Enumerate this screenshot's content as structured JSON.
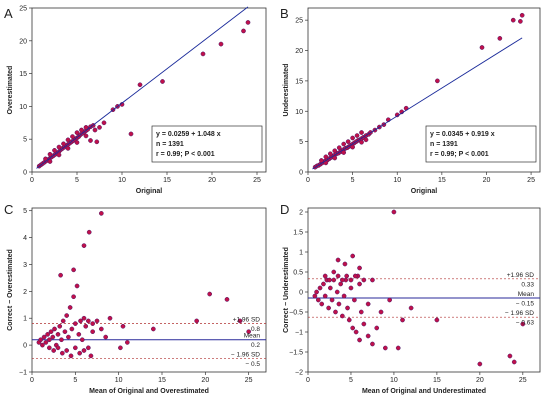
{
  "chart_data": [
    {
      "panel_label": "A",
      "type": "scatter",
      "xlabel": "Original",
      "ylabel": "Overestimated",
      "xlim": [
        0,
        26
      ],
      "ylim": [
        0,
        25
      ],
      "xticks": [
        0,
        5,
        10,
        15,
        20,
        25
      ],
      "yticks": [
        0,
        5,
        10,
        15,
        20,
        25
      ],
      "regression": {
        "intercept": 0.0259,
        "slope": 1.048
      },
      "stats_box": [
        "y = 0.0259 + 1.048 x",
        "n = 1391",
        "r = 0.99; P < 0.001"
      ],
      "points": [
        [
          0.8,
          0.9
        ],
        [
          1.0,
          1.1
        ],
        [
          1.2,
          1.3
        ],
        [
          1.4,
          1.5
        ],
        [
          1.6,
          1.7
        ],
        [
          1.8,
          1.9
        ],
        [
          2.0,
          2.1
        ],
        [
          2.2,
          2.3
        ],
        [
          2.4,
          2.5
        ],
        [
          2.6,
          2.7
        ],
        [
          2.8,
          2.9
        ],
        [
          3.0,
          3.1
        ],
        [
          3.2,
          3.4
        ],
        [
          3.4,
          3.6
        ],
        [
          3.6,
          3.8
        ],
        [
          3.8,
          4.0
        ],
        [
          4.0,
          4.2
        ],
        [
          4.2,
          4.4
        ],
        [
          4.4,
          4.6
        ],
        [
          4.6,
          4.8
        ],
        [
          4.8,
          5.0
        ],
        [
          5.0,
          5.2
        ],
        [
          5.2,
          5.4
        ],
        [
          5.4,
          5.7
        ],
        [
          5.6,
          5.9
        ],
        [
          5.8,
          6.1
        ],
        [
          6.0,
          6.3
        ],
        [
          6.2,
          6.5
        ],
        [
          6.5,
          6.9
        ],
        [
          6.8,
          7.1
        ],
        [
          1.5,
          2.0
        ],
        [
          2.0,
          2.7
        ],
        [
          2.5,
          3.3
        ],
        [
          3.0,
          3.8
        ],
        [
          3.5,
          4.3
        ],
        [
          4.0,
          4.9
        ],
        [
          4.5,
          5.4
        ],
        [
          5.0,
          6.0
        ],
        [
          5.5,
          6.4
        ],
        [
          6.0,
          6.8
        ],
        [
          2.0,
          1.6
        ],
        [
          3.0,
          2.6
        ],
        [
          4.0,
          3.6
        ],
        [
          5.0,
          4.5
        ],
        [
          6.0,
          5.5
        ],
        [
          6.5,
          4.8
        ],
        [
          7.0,
          6.4
        ],
        [
          7.5,
          6.8
        ],
        [
          7.2,
          4.6
        ],
        [
          8.0,
          7.5
        ],
        [
          9.0,
          9.5
        ],
        [
          9.5,
          10.0
        ],
        [
          10.0,
          10.3
        ],
        [
          11.0,
          5.8
        ],
        [
          12.0,
          13.3
        ],
        [
          14.5,
          13.8
        ],
        [
          19.0,
          18.0
        ],
        [
          21.0,
          19.5
        ],
        [
          23.5,
          21.5
        ],
        [
          24.0,
          22.8
        ]
      ]
    },
    {
      "panel_label": "B",
      "type": "scatter",
      "xlabel": "Original",
      "ylabel": "Underestimated",
      "xlim": [
        0,
        26
      ],
      "ylim": [
        0,
        27
      ],
      "xticks": [
        0,
        5,
        10,
        15,
        20,
        25
      ],
      "yticks": [
        0,
        5,
        10,
        15,
        20,
        25
      ],
      "regression": {
        "intercept": 0.0345,
        "slope": 0.919
      },
      "stats_box": [
        "y = 0.0345 + 0.919 x",
        "n = 1391",
        "r = 0.99; P < 0.001"
      ],
      "points": [
        [
          0.8,
          0.8
        ],
        [
          1.0,
          1.0
        ],
        [
          1.2,
          1.1
        ],
        [
          1.4,
          1.3
        ],
        [
          1.6,
          1.5
        ],
        [
          1.8,
          1.7
        ],
        [
          2.0,
          1.9
        ],
        [
          2.2,
          2.0
        ],
        [
          2.4,
          2.2
        ],
        [
          2.6,
          2.4
        ],
        [
          2.8,
          2.6
        ],
        [
          3.0,
          2.8
        ],
        [
          3.2,
          3.0
        ],
        [
          3.4,
          3.1
        ],
        [
          3.6,
          3.3
        ],
        [
          3.8,
          3.5
        ],
        [
          4.0,
          3.7
        ],
        [
          4.2,
          3.9
        ],
        [
          4.4,
          4.0
        ],
        [
          4.6,
          4.2
        ],
        [
          4.8,
          4.4
        ],
        [
          5.0,
          4.6
        ],
        [
          5.2,
          4.8
        ],
        [
          5.4,
          5.0
        ],
        [
          5.6,
          5.2
        ],
        [
          5.8,
          5.3
        ],
        [
          6.0,
          5.5
        ],
        [
          6.2,
          5.7
        ],
        [
          6.5,
          6.0
        ],
        [
          6.8,
          6.2
        ],
        [
          1.5,
          1.9
        ],
        [
          2.0,
          2.5
        ],
        [
          2.5,
          3.0
        ],
        [
          3.0,
          3.5
        ],
        [
          3.5,
          4.0
        ],
        [
          4.0,
          4.6
        ],
        [
          4.5,
          5.0
        ],
        [
          5.0,
          5.6
        ],
        [
          5.5,
          6.0
        ],
        [
          6.0,
          6.5
        ],
        [
          2.0,
          1.5
        ],
        [
          3.0,
          2.3
        ],
        [
          4.0,
          3.2
        ],
        [
          5.0,
          4.1
        ],
        [
          6.0,
          4.9
        ],
        [
          6.5,
          5.3
        ],
        [
          7.0,
          6.5
        ],
        [
          7.5,
          6.9
        ],
        [
          8.0,
          7.4
        ],
        [
          8.5,
          7.8
        ],
        [
          9.0,
          8.6
        ],
        [
          10.0,
          9.4
        ],
        [
          10.5,
          9.9
        ],
        [
          11.0,
          10.5
        ],
        [
          14.5,
          15.0
        ],
        [
          19.5,
          20.5
        ],
        [
          21.5,
          22.0
        ],
        [
          23.0,
          25.0
        ],
        [
          24.0,
          25.8
        ],
        [
          23.8,
          24.8
        ]
      ]
    },
    {
      "panel_label": "C",
      "type": "scatter",
      "xlabel": "Mean of Original and Overestimated",
      "ylabel": "Correct − Overestimated",
      "xlim": [
        0,
        27
      ],
      "ylim": [
        -1,
        5.1
      ],
      "xticks": [
        0,
        5,
        10,
        15,
        20,
        25
      ],
      "yticks": [
        -1,
        0,
        1,
        2,
        3,
        4,
        5
      ],
      "reference_lines": [
        {
          "value": 0.8,
          "label": "+1.96 SD",
          "value_label": "0.8",
          "style": "dashed"
        },
        {
          "value": 0.2,
          "label": "Mean",
          "value_label": "0.2",
          "style": "solid"
        },
        {
          "value": -0.5,
          "label": "− 1.96 SD",
          "value_label": "− 0.5",
          "style": "dashed"
        }
      ],
      "points": [
        [
          0.8,
          0.1
        ],
        [
          1.0,
          0.2
        ],
        [
          1.2,
          0.0
        ],
        [
          1.4,
          0.3
        ],
        [
          1.6,
          0.1
        ],
        [
          1.8,
          0.4
        ],
        [
          2.0,
          0.2
        ],
        [
          2.2,
          0.5
        ],
        [
          2.4,
          0.3
        ],
        [
          2.6,
          0.6
        ],
        [
          2.8,
          0.0
        ],
        [
          3.0,
          0.4
        ],
        [
          3.2,
          0.7
        ],
        [
          3.4,
          0.2
        ],
        [
          3.6,
          0.9
        ],
        [
          3.8,
          0.5
        ],
        [
          4.0,
          1.1
        ],
        [
          4.2,
          0.3
        ],
        [
          4.4,
          1.4
        ],
        [
          4.6,
          0.6
        ],
        [
          4.8,
          1.8
        ],
        [
          5.0,
          0.8
        ],
        [
          5.2,
          2.2
        ],
        [
          5.4,
          0.4
        ],
        [
          5.6,
          0.9
        ],
        [
          5.8,
          0.2
        ],
        [
          6.0,
          1.0
        ],
        [
          6.2,
          0.7
        ],
        [
          6.5,
          0.9
        ],
        [
          7.0,
          0.8
        ],
        [
          2.0,
          -0.1
        ],
        [
          2.5,
          -0.2
        ],
        [
          3.0,
          -0.1
        ],
        [
          3.5,
          -0.3
        ],
        [
          4.0,
          -0.2
        ],
        [
          4.5,
          -0.4
        ],
        [
          5.0,
          -0.1
        ],
        [
          5.5,
          -0.3
        ],
        [
          6.0,
          -0.2
        ],
        [
          6.5,
          -0.1
        ],
        [
          3.3,
          2.6
        ],
        [
          4.8,
          2.8
        ],
        [
          6.0,
          3.7
        ],
        [
          6.6,
          4.2
        ],
        [
          7.0,
          0.5
        ],
        [
          7.5,
          0.9
        ],
        [
          8.0,
          0.6
        ],
        [
          8.5,
          0.3
        ],
        [
          8.0,
          4.9
        ],
        [
          9.0,
          1.0
        ],
        [
          10.2,
          -0.1
        ],
        [
          10.5,
          0.7
        ],
        [
          11.0,
          0.1
        ],
        [
          14.0,
          0.6
        ],
        [
          19.0,
          0.9
        ],
        [
          20.5,
          1.9
        ],
        [
          22.5,
          1.7
        ],
        [
          24.0,
          0.9
        ],
        [
          25.0,
          0.5
        ],
        [
          6.8,
          -0.4
        ]
      ]
    },
    {
      "panel_label": "D",
      "type": "scatter",
      "xlabel": "Mean of Original and Underestimated",
      "ylabel": "Correct − Underestimated",
      "xlim": [
        0,
        27
      ],
      "ylim": [
        -2,
        2.1
      ],
      "xticks": [
        0,
        5,
        10,
        15,
        20,
        25
      ],
      "yticks": [
        -2,
        -1.5,
        -1,
        -0.5,
        0,
        0.5,
        1,
        1.5,
        2
      ],
      "reference_lines": [
        {
          "value": 0.33,
          "label": "+1.96 SD",
          "value_label": "0.33",
          "style": "dashed"
        },
        {
          "value": -0.15,
          "label": "Mean",
          "value_label": "− 0.15",
          "style": "solid"
        },
        {
          "value": -0.63,
          "label": "− 1.96 SD",
          "value_label": "− 0.63",
          "style": "dashed"
        }
      ],
      "points": [
        [
          0.8,
          -0.1
        ],
        [
          1.0,
          0.0
        ],
        [
          1.2,
          -0.2
        ],
        [
          1.4,
          0.1
        ],
        [
          1.6,
          -0.3
        ],
        [
          1.8,
          0.2
        ],
        [
          2.0,
          -0.1
        ],
        [
          2.2,
          0.3
        ],
        [
          2.4,
          -0.4
        ],
        [
          2.6,
          0.1
        ],
        [
          2.8,
          -0.2
        ],
        [
          3.0,
          0.3
        ],
        [
          3.2,
          -0.5
        ],
        [
          3.4,
          0.0
        ],
        [
          3.6,
          -0.3
        ],
        [
          3.8,
          0.2
        ],
        [
          4.0,
          -0.6
        ],
        [
          4.2,
          -0.1
        ],
        [
          4.4,
          0.3
        ],
        [
          4.6,
          -0.4
        ],
        [
          4.8,
          -0.7
        ],
        [
          5.0,
          0.1
        ],
        [
          5.2,
          -0.9
        ],
        [
          5.4,
          -0.2
        ],
        [
          5.6,
          -1.0
        ],
        [
          5.8,
          0.4
        ],
        [
          6.0,
          -1.2
        ],
        [
          6.2,
          -0.5
        ],
        [
          6.5,
          -0.8
        ],
        [
          7.0,
          -0.3
        ],
        [
          2.0,
          0.4
        ],
        [
          2.5,
          0.3
        ],
        [
          3.0,
          0.5
        ],
        [
          3.5,
          0.4
        ],
        [
          4.0,
          0.3
        ],
        [
          4.5,
          0.4
        ],
        [
          5.0,
          0.3
        ],
        [
          5.5,
          0.4
        ],
        [
          6.0,
          0.2
        ],
        [
          6.5,
          0.3
        ],
        [
          3.5,
          0.8
        ],
        [
          4.3,
          0.7
        ],
        [
          5.2,
          0.9
        ],
        [
          6.0,
          0.6
        ],
        [
          7.5,
          -1.3
        ],
        [
          8.0,
          -0.9
        ],
        [
          8.5,
          -0.5
        ],
        [
          9.0,
          -1.4
        ],
        [
          9.5,
          -0.2
        ],
        [
          10.0,
          2.0
        ],
        [
          10.5,
          -1.4
        ],
        [
          11.0,
          -0.7
        ],
        [
          15.0,
          -0.7
        ],
        [
          20.0,
          -1.8
        ],
        [
          23.5,
          -1.6
        ],
        [
          24.0,
          -1.75
        ],
        [
          25.0,
          -0.8
        ],
        [
          12.0,
          -0.4
        ],
        [
          7.0,
          -1.1
        ],
        [
          7.5,
          0.3
        ]
      ]
    }
  ]
}
